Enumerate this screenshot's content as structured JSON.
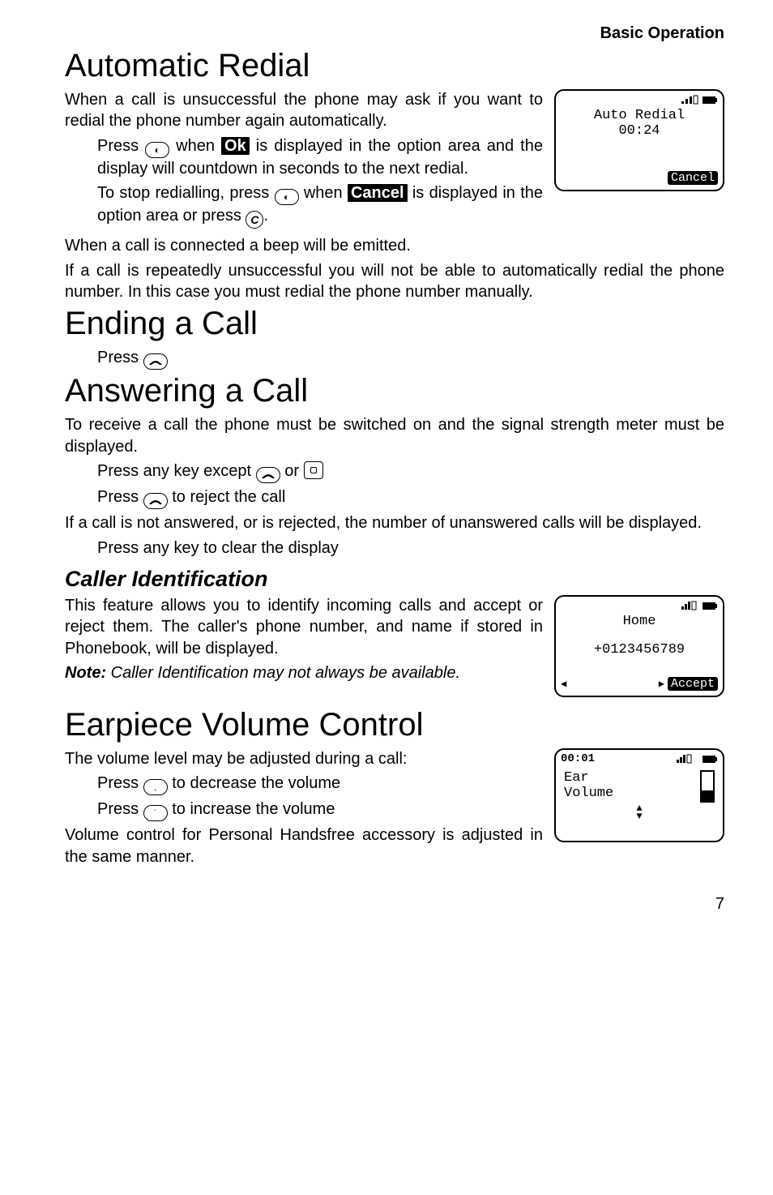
{
  "header": "Basic Operation",
  "pageNumber": "7",
  "s1": {
    "h": "Automatic Redial",
    "p1": "When a call is unsuccessful the phone may ask if you want to redial the phone number again automatically.",
    "p2a": "Press ",
    "p2b": " when ",
    "ok": "Ok",
    "p2c": " is displayed in the option area and the display will countdown in seconds to the next redial.",
    "p3a": "To stop redialling, press ",
    "p3b": " when ",
    "cancel": "Cancel",
    "p3c": " is displayed in the option area or press ",
    "p3d": ".",
    "c_key": "C",
    "p4": "When a call is connected a beep will be emitted.",
    "p5": "If a call is repeatedly unsuccessful you will not be able to automatically redial the phone number. In this case you must redial the phone number manually.",
    "screen": {
      "l1": "Auto Redial",
      "l2": "00:24",
      "soft": "Cancel"
    }
  },
  "s2": {
    "h": "Ending a Call",
    "p1": "Press "
  },
  "s3": {
    "h": "Answering a Call",
    "p1": "To receive a call the phone must be switched on and the signal strength meter must be displayed.",
    "p2a": "Press any key except ",
    "p2b": " or ",
    "p3a": "Press ",
    "p3b": " to reject the call",
    "p4": "If a call is not answered, or is rejected, the number of unanswered calls will be displayed.",
    "p5": "Press any key to clear the display",
    "sub": "Caller Identification",
    "p6": "This feature allows you to identify incoming calls and accept or reject them. The caller's phone number, and name if stored in Phonebook, will be displayed.",
    "noteLabel": "Note:",
    "noteText": " Caller Identification may not always be available.",
    "screen": {
      "l1": "Home",
      "l2": "+0123456789",
      "soft": "Accept"
    }
  },
  "s4": {
    "h": "Earpiece Volume Control",
    "p1": "The volume level may be adjusted during a call:",
    "p2a": "Press ",
    "p2b": " to decrease the volume",
    "p3a": "Press ",
    "p3b": " to increase the volume",
    "p4": "Volume control for Personal Handsfree accessory is adjusted in the same manner.",
    "screen": {
      "time": "00:01",
      "l1": "Ear",
      "l2": "Volume",
      "fillPercent": 35
    }
  }
}
